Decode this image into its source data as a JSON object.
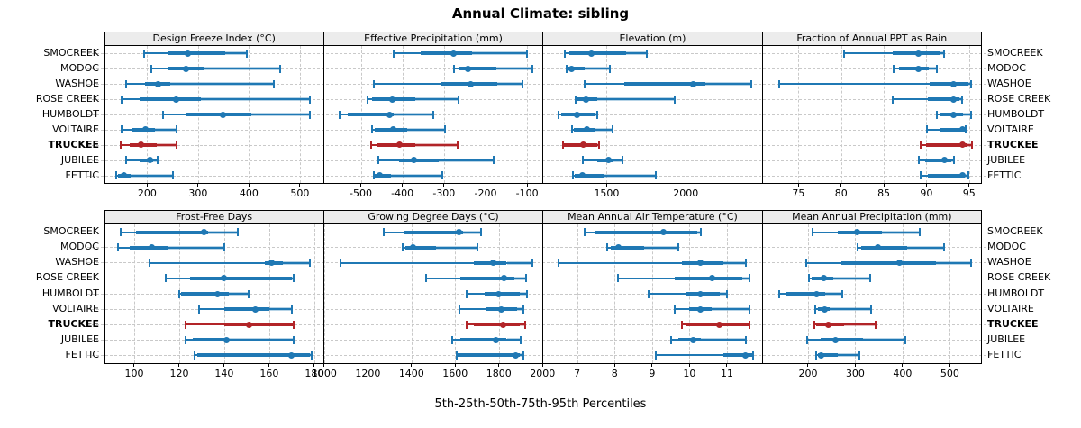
{
  "title": "Annual Climate: sibling",
  "xlabel": "5th-25th-50th-75th-95th Percentiles",
  "percentiles": [
    5,
    25,
    50,
    75,
    95
  ],
  "colors": {
    "series_normal": "#1f78b4",
    "series_highlight": "#b22428",
    "strip_bg": "#ececec",
    "grid": "#c9c9c9",
    "panel_border": "#000000"
  },
  "sites": [
    {
      "name": "SMOCREEK",
      "highlight": false
    },
    {
      "name": "MODOC",
      "highlight": false
    },
    {
      "name": "WASHOE",
      "highlight": false
    },
    {
      "name": "ROSE CREEK",
      "highlight": false
    },
    {
      "name": "HUMBOLDT",
      "highlight": false
    },
    {
      "name": "VOLTAIRE",
      "highlight": true
    },
    {
      "name": "TRUCKEE",
      "highlight": true
    },
    {
      "name": "JUBILEE",
      "highlight": false
    },
    {
      "name": "FETTIC",
      "highlight": false
    }
  ],
  "highlight_site": "TRUCKEE",
  "chart_data": [
    {
      "type": "interval-dotplot",
      "title": "Design Freeze Index (°C)",
      "xlim": [
        117,
        546
      ],
      "tick_values": [
        200,
        300,
        400,
        500
      ],
      "tick_labels": [
        "200",
        "300",
        "400",
        "500"
      ],
      "series": [
        [
          194,
          241,
          280,
          354,
          396
        ],
        [
          209,
          240,
          277,
          310,
          461
        ],
        [
          158,
          196,
          221,
          246,
          448
        ],
        [
          150,
          186,
          256,
          306,
          520
        ],
        [
          232,
          276,
          348,
          404,
          520
        ],
        [
          150,
          170,
          197,
          216,
          258
        ],
        [
          148,
          165,
          188,
          218,
          258
        ],
        [
          158,
          185,
          205,
          212,
          220
        ],
        [
          140,
          142,
          155,
          168,
          250
        ]
      ]
    },
    {
      "type": "interval-dotplot",
      "title": "Effective Precipitation (mm)",
      "xlim": [
        -588,
        -63
      ],
      "tick_values": [
        -500,
        -400,
        -300,
        -200,
        -100
      ],
      "tick_labels": [
        "-500",
        "-400",
        "-300",
        "-200",
        "-100"
      ],
      "series": [
        [
          -420,
          -355,
          -276,
          -232,
          -100
        ],
        [
          -276,
          -265,
          -242,
          -175,
          -88
        ],
        [
          -468,
          -308,
          -236,
          -172,
          -112
        ],
        [
          -483,
          -473,
          -425,
          -369,
          -265
        ],
        [
          -551,
          -531,
          -430,
          -422,
          -325
        ],
        [
          -474,
          -466,
          -422,
          -389,
          -297
        ],
        [
          -475,
          -459,
          -407,
          -369,
          -267
        ],
        [
          -457,
          -409,
          -373,
          -312,
          -180
        ],
        [
          -468,
          -466,
          -455,
          -428,
          -305
        ]
      ]
    },
    {
      "type": "interval-dotplot",
      "title": "Elevation (m)",
      "xlim": [
        1100,
        2481
      ],
      "tick_values": [
        1500,
        2000
      ],
      "tick_labels": [
        "1500",
        "2000"
      ],
      "series": [
        [
          1236,
          1264,
          1406,
          1623,
          1755
        ],
        [
          1245,
          1255,
          1277,
          1358,
          1519
        ],
        [
          1358,
          1613,
          2047,
          2123,
          2415
        ],
        [
          1302,
          1317,
          1372,
          1443,
          1930
        ],
        [
          1198,
          1211,
          1311,
          1425,
          1440
        ],
        [
          1283,
          1292,
          1377,
          1425,
          1538
        ],
        [
          1223,
          1226,
          1353,
          1443,
          1453
        ],
        [
          1349,
          1443,
          1509,
          1538,
          1598
        ],
        [
          1287,
          1296,
          1349,
          1481,
          1811
        ]
      ]
    },
    {
      "type": "interval-dotplot",
      "title": "Fraction of Annual PPT as Rain",
      "xlim": [
        70.8,
        96.4
      ],
      "tick_values": [
        75,
        80,
        85,
        90,
        95
      ],
      "tick_labels": [
        "75",
        "80",
        "85",
        "90",
        "95"
      ],
      "series": [
        [
          80.3,
          86.1,
          89.1,
          91.5,
          92.1
        ],
        [
          86.2,
          86.8,
          89.1,
          90.3,
          91.2
        ],
        [
          72.7,
          90.4,
          93.2,
          94.9,
          95.2
        ],
        [
          86.1,
          90.2,
          93.2,
          93.9,
          94.2
        ],
        [
          91.2,
          91.6,
          93.2,
          94.3,
          95.2
        ],
        [
          90.1,
          91.5,
          94.2,
          94.4,
          94.6
        ],
        [
          89.3,
          90.0,
          94.2,
          94.8,
          95.3
        ],
        [
          89.1,
          89.9,
          92.1,
          92.9,
          93.2
        ],
        [
          89.3,
          90.2,
          94.2,
          94.5,
          94.9
        ]
      ]
    },
    {
      "type": "interval-dotplot",
      "title": "Frost-Free Days",
      "xlim": [
        87,
        184
      ],
      "tick_values": [
        100,
        120,
        140,
        160,
        180
      ],
      "tick_labels": [
        "100",
        "120",
        "140",
        "160",
        "180"
      ],
      "series": [
        [
          94,
          101,
          131,
          133,
          146
        ],
        [
          93,
          98,
          108,
          115,
          140
        ],
        [
          107,
          158,
          161,
          166,
          178
        ],
        [
          114,
          125,
          140,
          170,
          171
        ],
        [
          120,
          121,
          137,
          142,
          151
        ],
        [
          129,
          140,
          154,
          160,
          170
        ],
        [
          123,
          140,
          151,
          171,
          171
        ],
        [
          123,
          126,
          141,
          142,
          171
        ],
        [
          127,
          128,
          170,
          178,
          179
        ]
      ]
    },
    {
      "type": "interval-dotplot",
      "title": "Growing Degree Days (°C)",
      "xlim": [
        1000,
        2000
      ],
      "tick_values": [
        1000,
        1200,
        1400,
        1600,
        1800,
        2000
      ],
      "tick_labels": [
        "1000",
        "1200",
        "1400",
        "1600",
        "1800",
        "2000"
      ],
      "series": [
        [
          1273,
          1369,
          1619,
          1637,
          1719
        ],
        [
          1358,
          1373,
          1406,
          1513,
          1702
        ],
        [
          1074,
          1685,
          1774,
          1836,
          1952
        ],
        [
          1465,
          1623,
          1825,
          1870,
          1925
        ],
        [
          1654,
          1733,
          1799,
          1897,
          1929
        ],
        [
          1620,
          1740,
          1811,
          1884,
          1914
        ],
        [
          1654,
          1685,
          1818,
          1897,
          1922
        ],
        [
          1585,
          1623,
          1788,
          1836,
          1901
        ],
        [
          1605,
          1609,
          1877,
          1897,
          1914
        ]
      ]
    },
    {
      "type": "interval-dotplot",
      "title": "Mean Annual Air Temperature (°C)",
      "xlim": [
        6.1,
        11.93
      ],
      "tick_values": [
        7,
        8,
        9,
        10,
        11
      ],
      "tick_labels": [
        "7",
        "8",
        "9",
        "10",
        "11"
      ],
      "series": [
        [
          7.2,
          7.5,
          9.3,
          10.2,
          10.3
        ],
        [
          7.8,
          7.9,
          8.1,
          8.8,
          9.7
        ],
        [
          6.5,
          9.8,
          10.3,
          10.9,
          11.5
        ],
        [
          8.1,
          9.6,
          10.6,
          11.4,
          11.6
        ],
        [
          8.9,
          9.9,
          10.3,
          10.8,
          11.0
        ],
        [
          9.6,
          10.0,
          10.3,
          10.6,
          11.6
        ],
        [
          9.8,
          9.9,
          10.8,
          11.6,
          11.6
        ],
        [
          9.5,
          9.7,
          10.1,
          10.3,
          11.5
        ],
        [
          9.1,
          10.9,
          11.5,
          11.7,
          11.7
        ]
      ]
    },
    {
      "type": "interval-dotplot",
      "title": "Mean Annual Precipitation (mm)",
      "xlim": [
        104,
        566
      ],
      "tick_values": [
        200,
        300,
        400,
        500
      ],
      "tick_labels": [
        "200",
        "300",
        "400",
        "500"
      ],
      "series": [
        [
          210,
          262,
          304,
          356,
          436
        ],
        [
          305,
          313,
          347,
          410,
          488
        ],
        [
          197,
          270,
          393,
          471,
          545
        ],
        [
          201,
          207,
          234,
          254,
          332
        ],
        [
          139,
          154,
          218,
          237,
          272
        ],
        [
          216,
          221,
          235,
          246,
          334
        ],
        [
          213,
          218,
          243,
          276,
          343
        ],
        [
          199,
          227,
          259,
          316,
          406
        ],
        [
          218,
          221,
          228,
          262,
          309
        ]
      ]
    }
  ]
}
